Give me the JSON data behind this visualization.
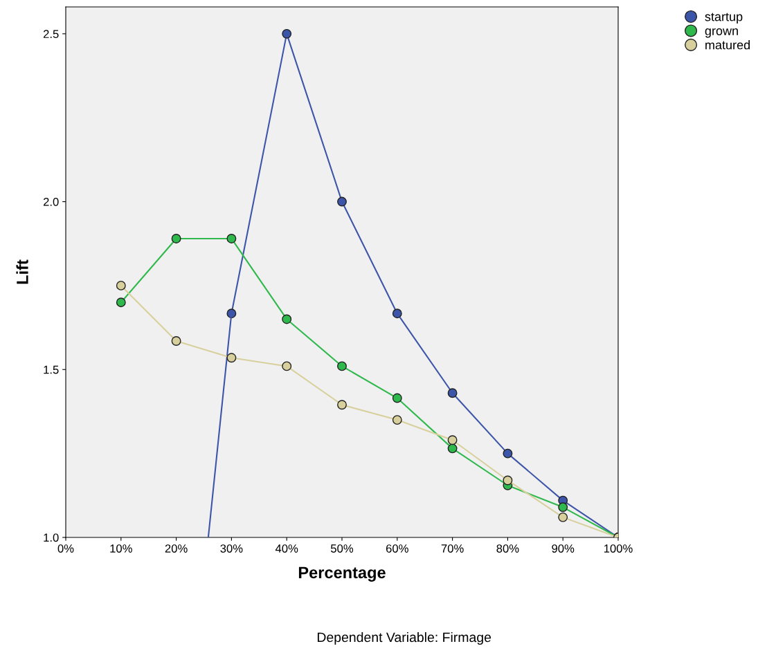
{
  "chart_data": {
    "type": "line",
    "xlabel": "Percentage",
    "ylabel": "Lift",
    "x": [
      10,
      20,
      30,
      40,
      50,
      60,
      70,
      80,
      90,
      100
    ],
    "series": [
      {
        "name": "startup",
        "color": "#3d55a8",
        "values": [
          null,
          null,
          1.667,
          2.5,
          2.0,
          1.667,
          1.43,
          1.25,
          1.11,
          1.0
        ]
      },
      {
        "color": "#3d55a8",
        "marker": "none",
        "x": [
          25.8,
          30
        ],
        "values": [
          1.0,
          1.667
        ]
      },
      {
        "name": "grown",
        "color": "#2fb84c",
        "values": [
          1.7,
          1.89,
          1.89,
          1.65,
          1.51,
          1.415,
          1.265,
          1.155,
          1.09,
          1.0
        ]
      },
      {
        "name": "matured",
        "color": "#d8d09c",
        "values": [
          1.75,
          1.585,
          1.535,
          1.51,
          1.395,
          1.35,
          1.29,
          1.17,
          1.06,
          1.0
        ]
      }
    ],
    "xlim": [
      0,
      100
    ],
    "xticks": [
      {
        "value": 0,
        "label": "0%"
      },
      {
        "value": 10,
        "label": "10%"
      },
      {
        "value": 20,
        "label": "20%"
      },
      {
        "value": 30,
        "label": "30%"
      },
      {
        "value": 40,
        "label": "40%"
      },
      {
        "value": 50,
        "label": "50%"
      },
      {
        "value": 60,
        "label": "60%"
      },
      {
        "value": 70,
        "label": "70%"
      },
      {
        "value": 80,
        "label": "80%"
      },
      {
        "value": 90,
        "label": "90%"
      },
      {
        "value": 100,
        "label": "100%"
      }
    ],
    "ylim": [
      1.0,
      2.58
    ],
    "yticks": [
      {
        "value": 1.0,
        "label": "1.0"
      },
      {
        "value": 1.5,
        "label": "1.5"
      },
      {
        "value": 2.0,
        "label": "2.0"
      },
      {
        "value": 2.5,
        "label": "2.5"
      }
    ],
    "grid": false,
    "legend": "top right",
    "marker": "circle",
    "line_style": "solid",
    "annotations": [
      "Dependent Variable: Firmage"
    ]
  }
}
